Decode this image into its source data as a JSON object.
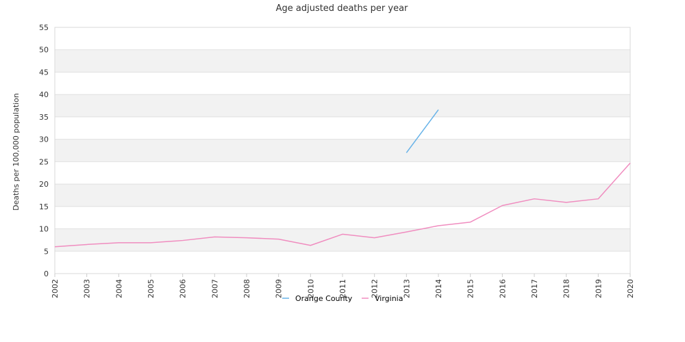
{
  "chart_data": {
    "type": "line",
    "title": "Age adjusted deaths per year",
    "xlabel": "",
    "ylabel": "Deaths per 100,000 population",
    "categories": [
      "2002",
      "2003",
      "2004",
      "2005",
      "2006",
      "2007",
      "2008",
      "2009",
      "2010",
      "2011",
      "2012",
      "2013",
      "2014",
      "2015",
      "2016",
      "2017",
      "2018",
      "2019",
      "2020"
    ],
    "ylim": [
      0,
      55
    ],
    "yticks": [
      0,
      5,
      10,
      15,
      20,
      25,
      30,
      35,
      40,
      45,
      50,
      55
    ],
    "grid": "alternating horizontal bands",
    "legend_position": "bottom-center",
    "series": [
      {
        "name": "Orange County",
        "color": "#66b2e8",
        "values": [
          null,
          null,
          null,
          null,
          null,
          null,
          null,
          null,
          null,
          null,
          null,
          27.0,
          36.6,
          null,
          null,
          null,
          null,
          null,
          null
        ]
      },
      {
        "name": "Virginia",
        "color": "#f08cbf",
        "values": [
          6.0,
          6.5,
          6.9,
          6.9,
          7.4,
          8.2,
          8.0,
          7.7,
          6.3,
          8.8,
          8.0,
          9.3,
          10.7,
          11.5,
          15.2,
          16.7,
          15.9,
          16.7,
          24.7
        ]
      }
    ]
  }
}
